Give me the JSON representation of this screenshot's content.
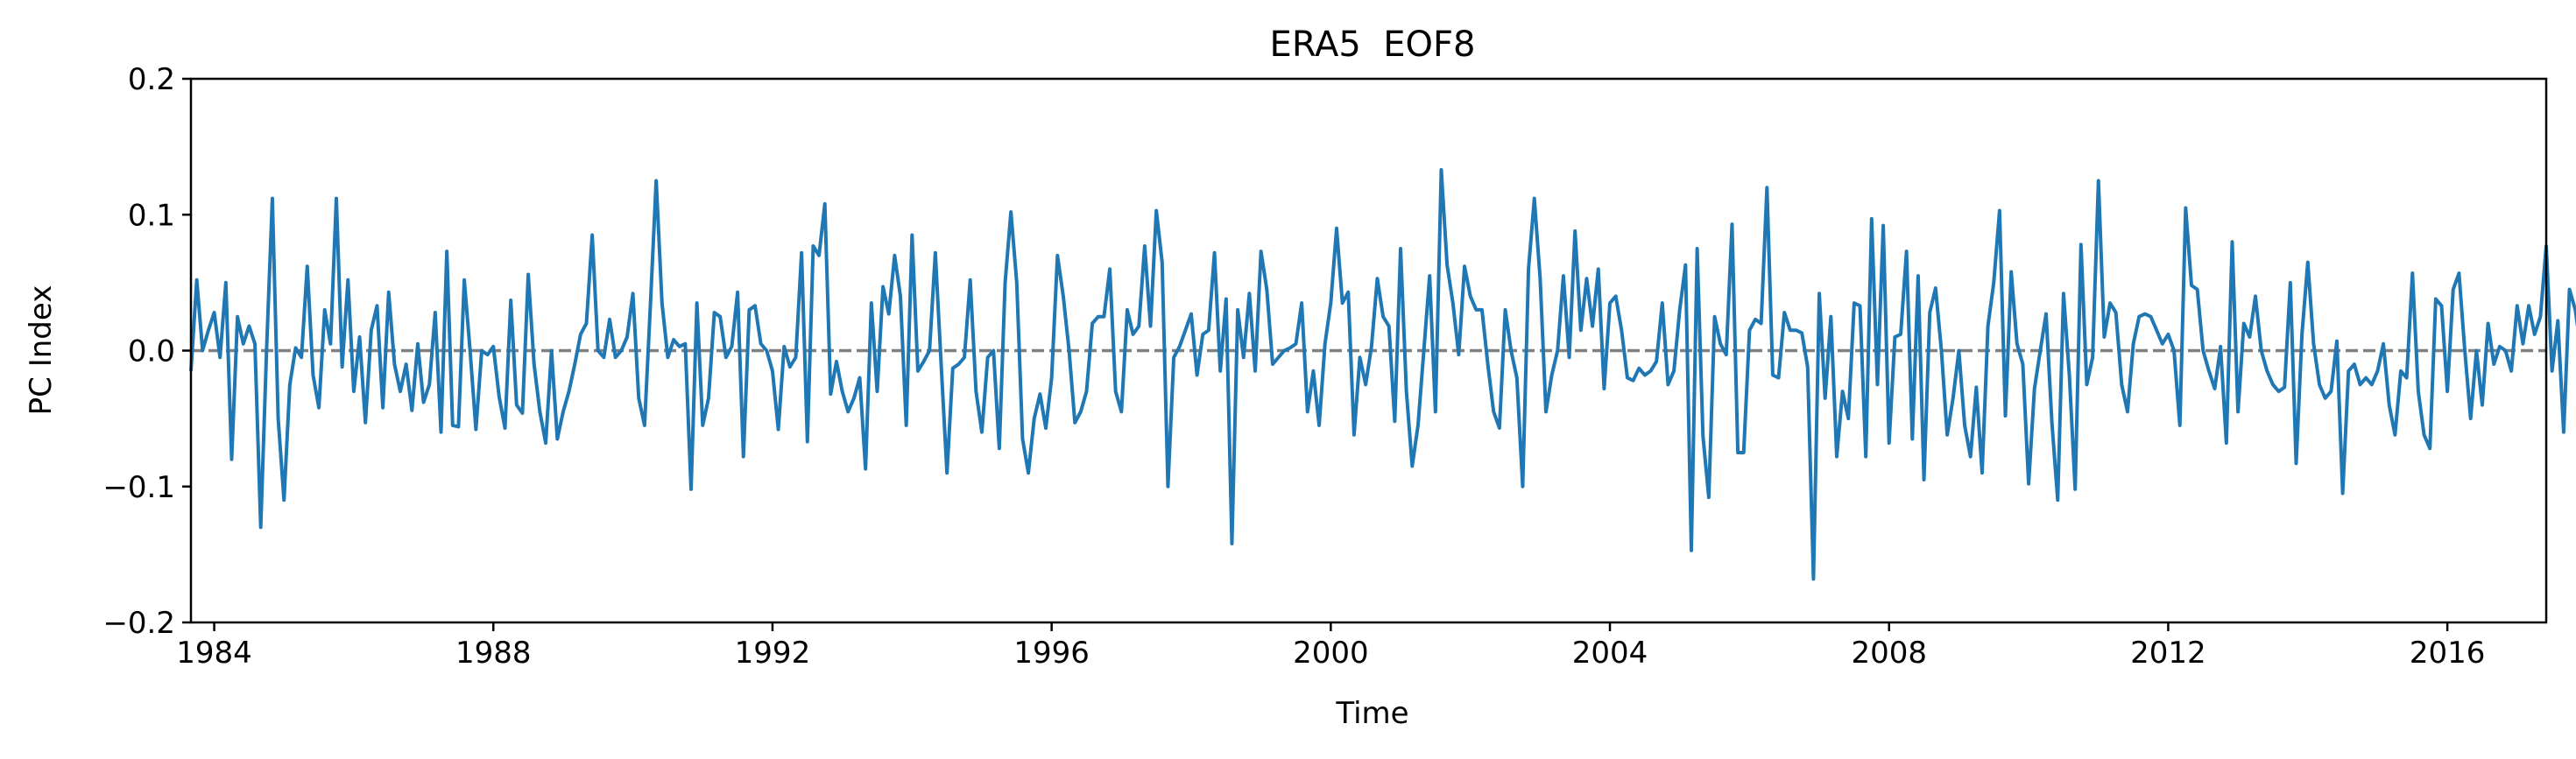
{
  "chart_data": {
    "type": "line",
    "title": "ERA5  EOF8",
    "xlabel": "Time",
    "ylabel": "PC Index",
    "xlim": [
      "1983-09",
      "2017-06"
    ],
    "ylim": [
      -0.2,
      0.2
    ],
    "xticks": [
      "1984",
      "1988",
      "1992",
      "1996",
      "2000",
      "2004",
      "2008",
      "2012",
      "2016"
    ],
    "yticks": [
      "−0.2",
      "−0.1",
      "0.0",
      "0.1",
      "0.2"
    ],
    "grid": false,
    "reference_line": {
      "y": 0.0,
      "style": "dashed",
      "color": "#808080"
    },
    "series": [
      {
        "color": "#1f77b4",
        "x_start": "1983-09",
        "frequency": "monthly",
        "values": [
          -0.015,
          0.052,
          0.0,
          0.015,
          0.028,
          -0.005,
          0.05,
          -0.08,
          0.025,
          0.005,
          0.018,
          0.005,
          -0.13,
          0.0,
          0.112,
          -0.05,
          -0.11,
          -0.025,
          0.002,
          -0.005,
          0.062,
          -0.018,
          -0.042,
          0.03,
          0.005,
          0.112,
          -0.012,
          0.052,
          -0.03,
          0.01,
          -0.053,
          0.015,
          0.033,
          -0.042,
          0.043,
          -0.01,
          -0.03,
          -0.01,
          -0.044,
          0.005,
          -0.038,
          -0.025,
          0.028,
          -0.06,
          0.073,
          -0.055,
          -0.056,
          0.052,
          0.0,
          -0.058,
          0.0,
          -0.003,
          0.003,
          -0.034,
          -0.057,
          0.037,
          -0.04,
          -0.046,
          0.056,
          -0.01,
          -0.045,
          -0.068,
          0.0,
          -0.065,
          -0.045,
          -0.03,
          -0.01,
          0.012,
          0.02,
          0.085,
          0.0,
          -0.005,
          0.023,
          -0.005,
          0.0,
          0.01,
          0.042,
          -0.035,
          -0.055,
          0.033,
          0.125,
          0.035,
          -0.005,
          0.008,
          0.003,
          0.005,
          -0.102,
          0.035,
          -0.055,
          -0.035,
          0.028,
          0.025,
          -0.005,
          0.003,
          0.043,
          -0.078,
          0.03,
          0.033,
          0.005,
          0.0,
          -0.015,
          -0.058,
          0.003,
          -0.012,
          -0.005,
          0.072,
          -0.067,
          0.077,
          0.07,
          0.108,
          -0.032,
          -0.008,
          -0.03,
          -0.045,
          -0.035,
          -0.02,
          -0.087,
          0.035,
          -0.03,
          0.047,
          0.027,
          0.07,
          0.04,
          -0.055,
          0.085,
          -0.015,
          -0.008,
          0.0,
          0.072,
          -0.01,
          -0.09,
          -0.013,
          -0.01,
          -0.005,
          0.052,
          -0.03,
          -0.06,
          -0.005,
          0.0,
          -0.072,
          0.05,
          0.102,
          0.05,
          -0.065,
          -0.09,
          -0.05,
          -0.032,
          -0.057,
          -0.02,
          0.07,
          0.04,
          0.0,
          -0.053,
          -0.045,
          -0.03,
          0.02,
          0.025,
          0.025,
          0.06,
          -0.03,
          -0.045,
          0.03,
          0.012,
          0.018,
          0.077,
          0.018,
          0.103,
          0.065,
          -0.1,
          -0.005,
          0.003,
          0.015,
          0.027,
          -0.018,
          0.012,
          0.015,
          0.072,
          -0.015,
          0.038,
          -0.142,
          0.03,
          -0.005,
          0.042,
          -0.015,
          0.073,
          0.045,
          -0.01,
          -0.005,
          0.0,
          0.002,
          0.005,
          0.035,
          -0.045,
          -0.015,
          -0.055,
          0.005,
          0.035,
          0.09,
          0.035,
          0.043,
          -0.062,
          -0.005,
          -0.025,
          0.003,
          0.053,
          0.025,
          0.018,
          -0.052,
          0.075,
          -0.03,
          -0.085,
          -0.055,
          0.0,
          0.055,
          -0.045,
          0.133,
          0.063,
          0.035,
          -0.003,
          0.062,
          0.04,
          0.03,
          0.03,
          -0.01,
          -0.045,
          -0.057,
          0.03,
          0.0,
          -0.02,
          -0.1,
          0.06,
          0.112,
          0.053,
          -0.045,
          -0.018,
          0.0,
          0.055,
          -0.005,
          0.088,
          0.015,
          0.053,
          0.018,
          0.06,
          -0.028,
          0.035,
          0.04,
          0.015,
          -0.02,
          -0.022,
          -0.013,
          -0.018,
          -0.015,
          -0.008,
          0.035,
          -0.025,
          -0.015,
          0.03,
          0.063,
          -0.147,
          0.075,
          -0.063,
          -0.108,
          0.025,
          0.005,
          -0.003,
          0.093,
          -0.075,
          -0.075,
          0.015,
          0.023,
          0.02,
          0.12,
          -0.018,
          -0.02,
          0.028,
          0.015,
          0.015,
          0.013,
          -0.012,
          -0.168,
          0.042,
          -0.035,
          0.025,
          -0.078,
          -0.03,
          -0.05,
          0.035,
          0.033,
          -0.078,
          0.097,
          -0.025,
          0.092,
          -0.068,
          0.01,
          0.012,
          0.073,
          -0.065,
          0.055,
          -0.095,
          0.028,
          0.046,
          0.0,
          -0.062,
          -0.035,
          0.0,
          -0.055,
          -0.078,
          -0.027,
          -0.09,
          0.018,
          0.05,
          0.103,
          -0.048,
          0.058,
          0.005,
          -0.01,
          -0.098,
          -0.028,
          0.0,
          0.027,
          -0.053,
          -0.11,
          0.042,
          -0.018,
          -0.102,
          0.078,
          -0.025,
          -0.005,
          0.125,
          0.01,
          0.035,
          0.028,
          -0.025,
          -0.045,
          0.005,
          0.025,
          0.027,
          0.025,
          0.015,
          0.005,
          0.012,
          0.0,
          -0.055,
          0.105,
          0.048,
          0.045,
          0.0,
          -0.015,
          -0.028,
          0.003,
          -0.068,
          0.08,
          -0.045,
          0.02,
          0.01,
          0.04,
          0.0,
          -0.015,
          -0.025,
          -0.03,
          -0.027,
          0.05,
          -0.083,
          0.012,
          0.065,
          0.005,
          -0.025,
          -0.035,
          -0.03,
          0.007,
          -0.105,
          -0.015,
          -0.01,
          -0.025,
          -0.02,
          -0.025,
          -0.015,
          0.005,
          -0.04,
          -0.062,
          -0.015,
          -0.02,
          0.057,
          -0.03,
          -0.062,
          -0.072,
          0.038,
          0.033,
          -0.03,
          0.045,
          0.057,
          0.0,
          -0.05,
          0.0,
          -0.04,
          0.02,
          -0.01,
          0.003,
          0.0,
          -0.015,
          0.033,
          0.005,
          0.033,
          0.012,
          0.025,
          0.077,
          -0.015,
          0.022,
          -0.06,
          0.045,
          0.03,
          0.0,
          -0.045,
          -0.062,
          0.025,
          0.003,
          -0.02,
          -0.012,
          -0.103,
          0.0,
          0.065,
          0.045,
          0.0,
          -0.035,
          0.033,
          0.035
        ]
      }
    ]
  }
}
